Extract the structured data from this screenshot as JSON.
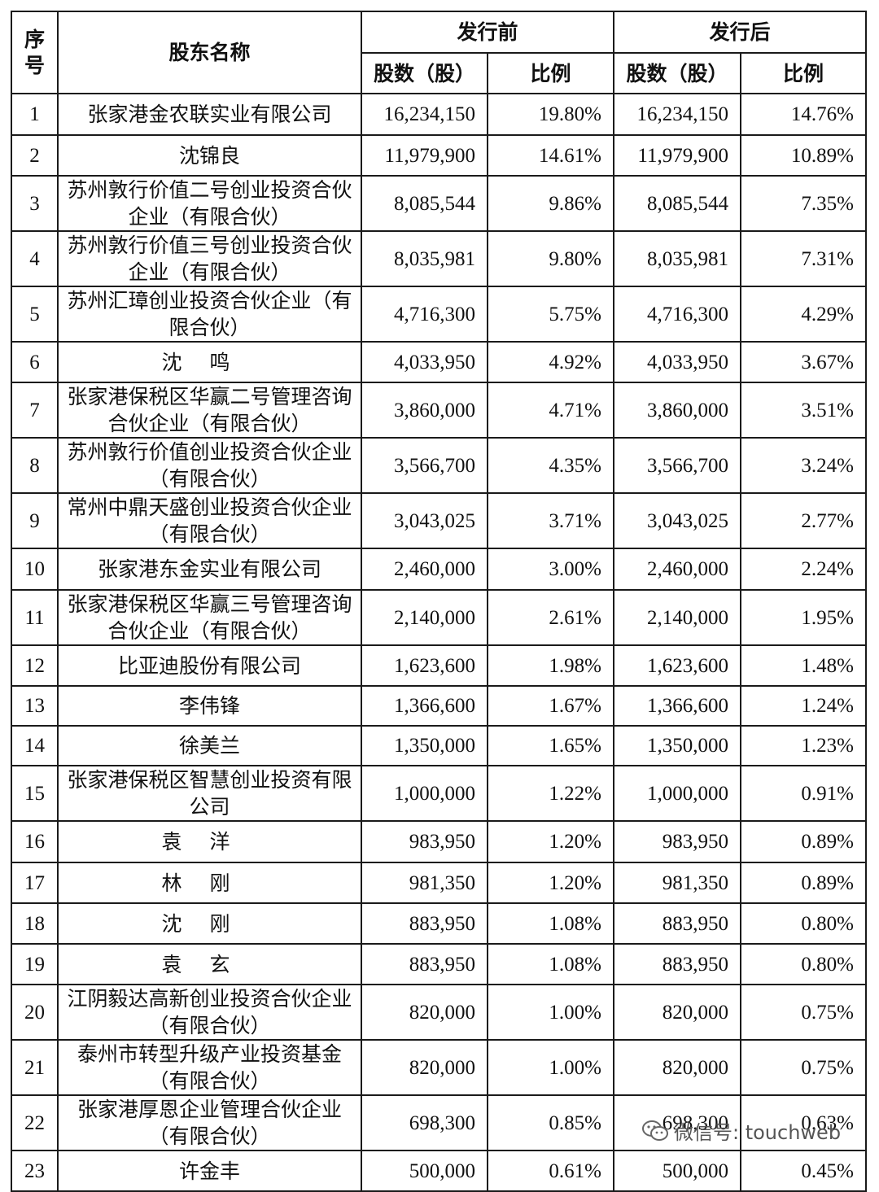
{
  "table": {
    "headers": {
      "index": "序\n号",
      "name": "股东名称",
      "before": "发行前",
      "after": "发行后",
      "shares": "股数（股）",
      "ratio": "比例"
    },
    "rows": [
      {
        "no": "1",
        "name": "张家港金农联实业有限公司",
        "before_shares": "16,234,150",
        "before_ratio": "19.80%",
        "after_shares": "16,234,150",
        "after_ratio": "14.76%"
      },
      {
        "no": "2",
        "name": "沈锦良",
        "before_shares": "11,979,900",
        "before_ratio": "14.61%",
        "after_shares": "11,979,900",
        "after_ratio": "10.89%"
      },
      {
        "no": "3",
        "name": "苏州敦行价值二号创业投资合伙企业（有限合伙）",
        "before_shares": "8,085,544",
        "before_ratio": "9.86%",
        "after_shares": "8,085,544",
        "after_ratio": "7.35%"
      },
      {
        "no": "4",
        "name": "苏州敦行价值三号创业投资合伙企业（有限合伙）",
        "before_shares": "8,035,981",
        "before_ratio": "9.80%",
        "after_shares": "8,035,981",
        "after_ratio": "7.31%"
      },
      {
        "no": "5",
        "name": "苏州汇璋创业投资合伙企业（有限合伙）",
        "before_shares": "4,716,300",
        "before_ratio": "5.75%",
        "after_shares": "4,716,300",
        "after_ratio": "4.29%"
      },
      {
        "no": "6",
        "name": "沈鸣",
        "before_shares": "4,033,950",
        "before_ratio": "4.92%",
        "after_shares": "4,033,950",
        "after_ratio": "3.67%"
      },
      {
        "no": "7",
        "name": "张家港保税区华赢二号管理咨询合伙企业（有限合伙）",
        "before_shares": "3,860,000",
        "before_ratio": "4.71%",
        "after_shares": "3,860,000",
        "after_ratio": "3.51%"
      },
      {
        "no": "8",
        "name": "苏州敦行价值创业投资合伙企业（有限合伙）",
        "before_shares": "3,566,700",
        "before_ratio": "4.35%",
        "after_shares": "3,566,700",
        "after_ratio": "3.24%"
      },
      {
        "no": "9",
        "name": "常州中鼎天盛创业投资合伙企业（有限合伙）",
        "before_shares": "3,043,025",
        "before_ratio": "3.71%",
        "after_shares": "3,043,025",
        "after_ratio": "2.77%"
      },
      {
        "no": "10",
        "name": "张家港东金实业有限公司",
        "before_shares": "2,460,000",
        "before_ratio": "3.00%",
        "after_shares": "2,460,000",
        "after_ratio": "2.24%"
      },
      {
        "no": "11",
        "name": "张家港保税区华赢三号管理咨询合伙企业（有限合伙）",
        "before_shares": "2,140,000",
        "before_ratio": "2.61%",
        "after_shares": "2,140,000",
        "after_ratio": "1.95%"
      },
      {
        "no": "12",
        "name": "比亚迪股份有限公司",
        "before_shares": "1,623,600",
        "before_ratio": "1.98%",
        "after_shares": "1,623,600",
        "after_ratio": "1.48%"
      },
      {
        "no": "13",
        "name": "李伟锋",
        "before_shares": "1,366,600",
        "before_ratio": "1.67%",
        "after_shares": "1,366,600",
        "after_ratio": "1.24%"
      },
      {
        "no": "14",
        "name": "徐美兰",
        "before_shares": "1,350,000",
        "before_ratio": "1.65%",
        "after_shares": "1,350,000",
        "after_ratio": "1.23%"
      },
      {
        "no": "15",
        "name": "张家港保税区智慧创业投资有限公司",
        "before_shares": "1,000,000",
        "before_ratio": "1.22%",
        "after_shares": "1,000,000",
        "after_ratio": "0.91%"
      },
      {
        "no": "16",
        "name": "袁洋",
        "before_shares": "983,950",
        "before_ratio": "1.20%",
        "after_shares": "983,950",
        "after_ratio": "0.89%"
      },
      {
        "no": "17",
        "name": "林刚",
        "before_shares": "981,350",
        "before_ratio": "1.20%",
        "after_shares": "981,350",
        "after_ratio": "0.89%"
      },
      {
        "no": "18",
        "name": "沈刚",
        "before_shares": "883,950",
        "before_ratio": "1.08%",
        "after_shares": "883,950",
        "after_ratio": "0.80%"
      },
      {
        "no": "19",
        "name": "袁玄",
        "before_shares": "883,950",
        "before_ratio": "1.08%",
        "after_shares": "883,950",
        "after_ratio": "0.80%"
      },
      {
        "no": "20",
        "name": "江阴毅达高新创业投资合伙企业（有限合伙）",
        "before_shares": "820,000",
        "before_ratio": "1.00%",
        "after_shares": "820,000",
        "after_ratio": "0.75%"
      },
      {
        "no": "21",
        "name": "泰州市转型升级产业投资基金（有限合伙）",
        "before_shares": "820,000",
        "before_ratio": "1.00%",
        "after_shares": "820,000",
        "after_ratio": "0.75%"
      },
      {
        "no": "22",
        "name": "张家港厚恩企业管理合伙企业（有限合伙）",
        "before_shares": "698,300",
        "before_ratio": "0.85%",
        "after_shares": "698,300",
        "after_ratio": "0.63%"
      },
      {
        "no": "23",
        "name": "许金丰",
        "before_shares": "500,000",
        "before_ratio": "0.61%",
        "after_shares": "500,000",
        "after_ratio": "0.45%"
      }
    ]
  },
  "watermark": {
    "icon": "wechat-icon",
    "text": "微信号: touchweb"
  }
}
